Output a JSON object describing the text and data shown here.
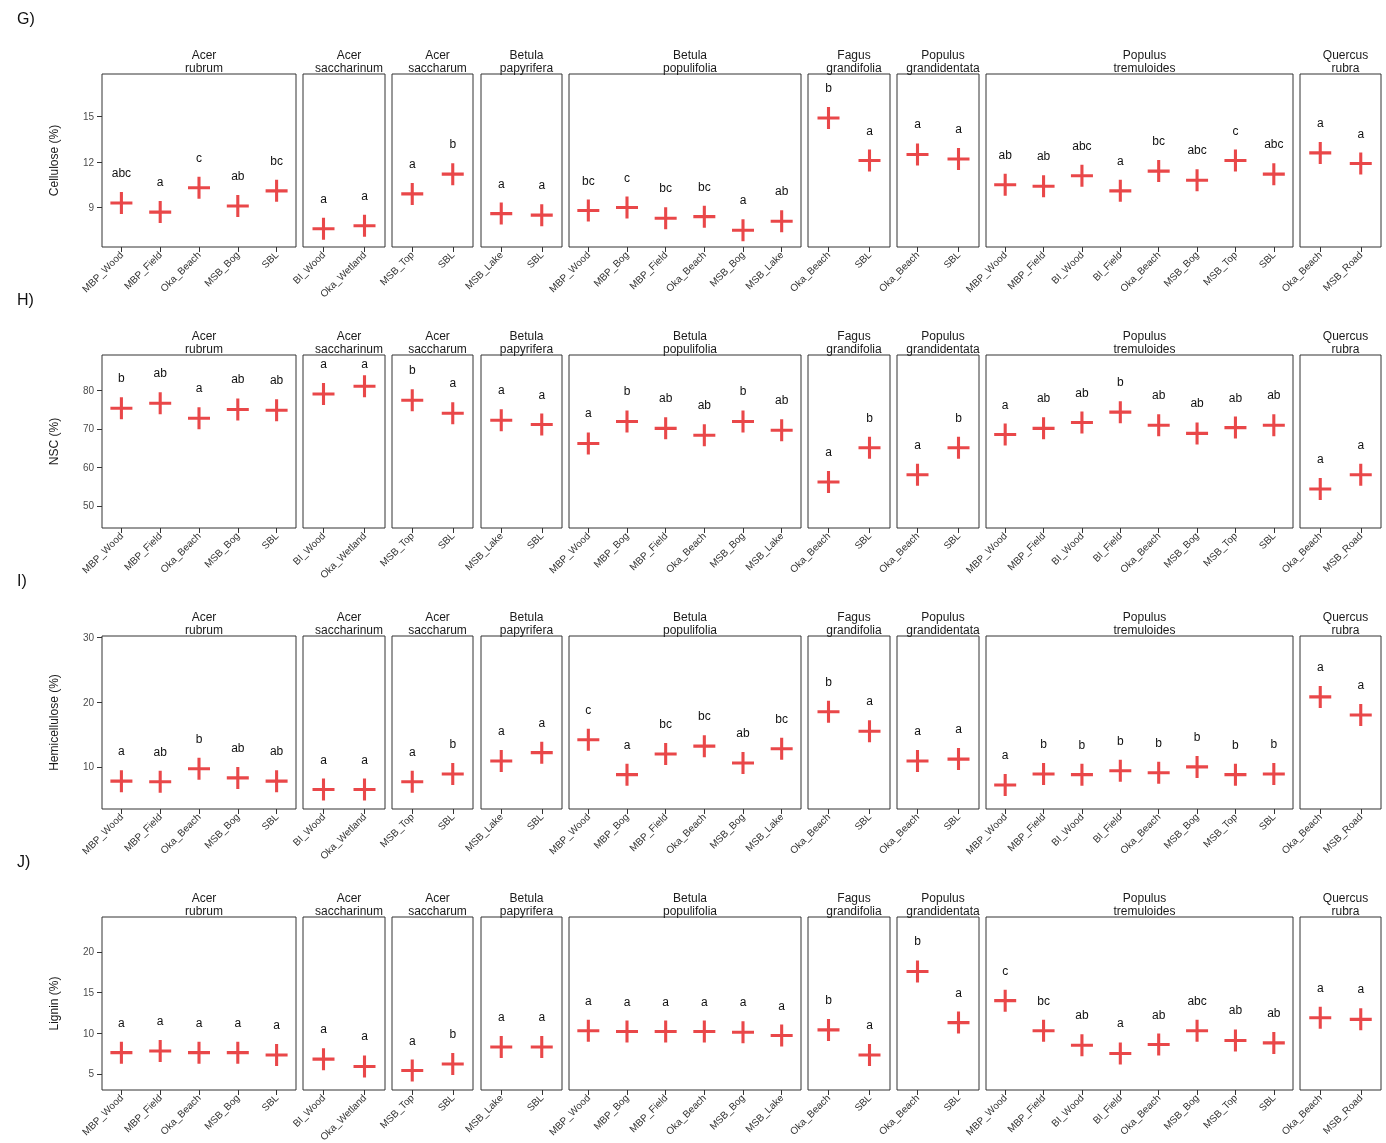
{
  "chart_data": [
    {
      "type": "scatter",
      "subtitle": "G)",
      "title": "Acer rubrum",
      "ylabel": "Cellulose (%)",
      "categories": [
        "MBP_Wood",
        "MBP_Field",
        "Oka_Beach",
        "MSB_Bog",
        "SBL"
      ],
      "values": [
        9.3,
        8.7,
        10.3,
        9.1,
        10.1
      ],
      "color": "#e3191c",
      "marker": "cross",
      "ylim": [
        6.4,
        17.8
      ],
      "yticks": [
        9,
        12,
        15
      ],
      "annotations": [
        "abc",
        "a",
        "c",
        "ab",
        "bc"
      ]
    },
    {
      "type": "scatter",
      "title": "Acer saccharinum",
      "categories": [
        "BI_Wood",
        "Oka_Wetland"
      ],
      "values": [
        7.6,
        7.8
      ],
      "color": "#e3191c",
      "marker": "cross",
      "ylim": [
        6.4,
        17.8
      ],
      "yticks": [
        9,
        12,
        15
      ],
      "tick_labels": "x",
      "annotations": [
        "a",
        "a"
      ]
    },
    {
      "type": "scatter",
      "title": "Acer saccharum",
      "categories": [
        "MSB_Top",
        "SBL"
      ],
      "values": [
        9.9,
        11.2
      ],
      "color": "#e3191c",
      "marker": "cross",
      "ylim": [
        6.4,
        17.8
      ],
      "yticks": [
        9,
        12,
        15
      ],
      "tick_labels": "x",
      "annotations": [
        "a",
        "b"
      ]
    },
    {
      "type": "scatter",
      "title": "Betula papyrifera",
      "categories": [
        "MSB_Lake",
        "SBL"
      ],
      "values": [
        8.6,
        8.5
      ],
      "color": "#e3191c",
      "marker": "cross",
      "ylim": [
        6.4,
        17.8
      ],
      "yticks": [
        9,
        12,
        15
      ],
      "tick_labels": "x",
      "annotations": [
        "a",
        "a"
      ]
    },
    {
      "type": "scatter",
      "title": "Betula populifolia",
      "categories": [
        "MBP_Wood",
        "MBP_Bog",
        "MBP_Field",
        "Oka_Beach",
        "MSB_Bog",
        "MSB_Lake"
      ],
      "values": [
        8.8,
        9.0,
        8.3,
        8.4,
        7.5,
        8.1
      ],
      "color": "#e3191c",
      "marker": "cross",
      "ylim": [
        6.4,
        17.8
      ],
      "yticks": [
        9,
        12,
        15
      ],
      "tick_labels": "x",
      "annotations": [
        "bc",
        "c",
        "bc",
        "bc",
        "a",
        "ab"
      ]
    },
    {
      "type": "scatter",
      "title": "Fagus grandifolia",
      "categories": [
        "Oka_Beach",
        "SBL"
      ],
      "values": [
        14.9,
        12.1
      ],
      "color": "#e3191c",
      "marker": "cross",
      "ylim": [
        6.4,
        17.8
      ],
      "yticks": [
        9,
        12,
        15
      ],
      "tick_labels": "x",
      "annotations": [
        "b",
        "a"
      ]
    },
    {
      "type": "scatter",
      "title": "Populus grandidentata",
      "categories": [
        "Oka_Beach",
        "SBL"
      ],
      "values": [
        12.5,
        12.2
      ],
      "color": "#e3191c",
      "marker": "cross",
      "ylim": [
        6.4,
        17.8
      ],
      "yticks": [
        9,
        12,
        15
      ],
      "tick_labels": "x",
      "annotations": [
        "a",
        "a"
      ]
    },
    {
      "type": "scatter",
      "title": "Populus tremuloides",
      "categories": [
        "MBP_Wood",
        "MBP_Field",
        "BI_Wood",
        "BI_Field",
        "Oka_Beach",
        "MSB_Bog",
        "MSB_Top",
        "SBL"
      ],
      "values": [
        10.5,
        10.4,
        11.1,
        10.1,
        11.4,
        10.8,
        12.1,
        11.2
      ],
      "color": "#e3191c",
      "marker": "cross",
      "ylim": [
        6.4,
        17.8
      ],
      "yticks": [
        9,
        12,
        15
      ],
      "tick_labels": "x",
      "annotations": [
        "ab",
        "ab",
        "abc",
        "a",
        "bc",
        "abc",
        "c",
        "abc"
      ]
    },
    {
      "type": "scatter",
      "title": "Quercus rubra",
      "categories": [
        "Oka_Beach",
        "MSB_Road"
      ],
      "values": [
        12.6,
        11.9
      ],
      "color": "#e3191c",
      "marker": "cross",
      "ylim": [
        6.4,
        17.8
      ],
      "yticks": [
        9,
        12,
        15
      ],
      "tick_labels": "x",
      "annotations": [
        "a",
        "a"
      ]
    },
    {
      "type": "scatter",
      "subtitle": "H)",
      "title": "Acer rubrum",
      "ylabel": "NSC (%)",
      "categories": [
        "MBP_Wood",
        "MBP_Field",
        "Oka_Beach",
        "MSB_Bog",
        "SBL"
      ],
      "values": [
        75.3,
        76.6,
        72.7,
        75.0,
        74.8
      ],
      "color": "#e3191c",
      "marker": "cross",
      "ylim": [
        44.3,
        89.1
      ],
      "yticks": [
        50,
        60,
        70,
        80
      ],
      "annotations": [
        "b",
        "ab",
        "a",
        "ab",
        "ab"
      ]
    },
    {
      "type": "scatter",
      "title": "Acer saccharinum",
      "categories": [
        "BI_Wood",
        "Oka_Wetland"
      ],
      "values": [
        79.0,
        81.0
      ],
      "color": "#e3191c",
      "marker": "cross",
      "ylim": [
        44.3,
        89.1
      ],
      "yticks": [
        50,
        60,
        70,
        80
      ],
      "tick_labels": "x",
      "annotations": [
        "a",
        "a"
      ]
    },
    {
      "type": "scatter",
      "title": "Acer saccharum",
      "categories": [
        "MSB_Top",
        "SBL"
      ],
      "values": [
        77.4,
        74.0
      ],
      "color": "#e3191c",
      "marker": "cross",
      "ylim": [
        44.3,
        89.1
      ],
      "yticks": [
        50,
        60,
        70,
        80
      ],
      "tick_labels": "x",
      "annotations": [
        "b",
        "a"
      ]
    },
    {
      "type": "scatter",
      "title": "Betula papyrifera",
      "categories": [
        "MSB_Lake",
        "SBL"
      ],
      "values": [
        72.2,
        71.1
      ],
      "color": "#e3191c",
      "marker": "cross",
      "ylim": [
        44.3,
        89.1
      ],
      "yticks": [
        50,
        60,
        70,
        80
      ],
      "tick_labels": "x",
      "annotations": [
        "a",
        "a"
      ]
    },
    {
      "type": "scatter",
      "title": "Betula populifolia",
      "categories": [
        "MBP_Wood",
        "MBP_Bog",
        "MBP_Field",
        "Oka_Beach",
        "MSB_Bog",
        "MSB_Lake"
      ],
      "values": [
        66.2,
        71.9,
        70.1,
        68.3,
        71.9,
        69.6
      ],
      "color": "#e3191c",
      "marker": "cross",
      "ylim": [
        44.3,
        89.1
      ],
      "yticks": [
        50,
        60,
        70,
        80
      ],
      "tick_labels": "x",
      "annotations": [
        "a",
        "b",
        "ab",
        "ab",
        "b",
        "ab"
      ]
    },
    {
      "type": "scatter",
      "title": "Fagus grandifolia",
      "categories": [
        "Oka_Beach",
        "SBL"
      ],
      "values": [
        56.2,
        65.1
      ],
      "color": "#e3191c",
      "marker": "cross",
      "ylim": [
        44.3,
        89.1
      ],
      "yticks": [
        50,
        60,
        70,
        80
      ],
      "tick_labels": "x",
      "annotations": [
        "a",
        "b"
      ]
    },
    {
      "type": "scatter",
      "title": "Populus grandidentata",
      "categories": [
        "Oka_Beach",
        "SBL"
      ],
      "values": [
        58.1,
        65.1
      ],
      "color": "#e3191c",
      "marker": "cross",
      "ylim": [
        44.3,
        89.1
      ],
      "yticks": [
        50,
        60,
        70,
        80
      ],
      "tick_labels": "x",
      "annotations": [
        "a",
        "b"
      ]
    },
    {
      "type": "scatter",
      "title": "Populus tremuloides",
      "categories": [
        "MBP_Wood",
        "MBP_Field",
        "BI_Wood",
        "BI_Field",
        "Oka_Beach",
        "MSB_Bog",
        "MSB_Top",
        "SBL"
      ],
      "values": [
        68.5,
        70.1,
        71.6,
        74.3,
        70.9,
        68.8,
        70.3,
        70.9
      ],
      "color": "#e3191c",
      "marker": "cross",
      "ylim": [
        44.3,
        89.1
      ],
      "yticks": [
        50,
        60,
        70,
        80
      ],
      "tick_labels": "x",
      "annotations": [
        "a",
        "ab",
        "ab",
        "b",
        "ab",
        "ab",
        "ab",
        "ab"
      ]
    },
    {
      "type": "scatter",
      "title": "Quercus rubra",
      "categories": [
        "Oka_Beach",
        "MSB_Road"
      ],
      "values": [
        54.4,
        58.1
      ],
      "color": "#e3191c",
      "marker": "cross",
      "ylim": [
        44.3,
        89.1
      ],
      "yticks": [
        50,
        60,
        70,
        80
      ],
      "tick_labels": "x",
      "annotations": [
        "a",
        "a"
      ]
    },
    {
      "type": "scatter",
      "subtitle": "I)",
      "title": "Acer rubrum",
      "ylabel": "Hemicellulose (%)",
      "categories": [
        "MBP_Wood",
        "MBP_Field",
        "Oka_Beach",
        "MSB_Bog",
        "SBL"
      ],
      "values": [
        7.8,
        7.7,
        9.7,
        8.3,
        7.8
      ],
      "color": "#e3191c",
      "marker": "cross",
      "ylim": [
        3.5,
        30.2
      ],
      "yticks": [
        10,
        20,
        30
      ],
      "annotations": [
        "a",
        "ab",
        "b",
        "ab",
        "ab"
      ]
    },
    {
      "type": "scatter",
      "title": "Acer saccharinum",
      "categories": [
        "BI_Wood",
        "Oka_Wetland"
      ],
      "values": [
        6.5,
        6.5
      ],
      "color": "#e3191c",
      "marker": "cross",
      "ylim": [
        3.5,
        30.2
      ],
      "yticks": [
        10,
        20,
        30
      ],
      "tick_labels": "x",
      "annotations": [
        "a",
        "a"
      ]
    },
    {
      "type": "scatter",
      "title": "Acer saccharum",
      "categories": [
        "MSB_Top",
        "SBL"
      ],
      "values": [
        7.7,
        8.9
      ],
      "color": "#e3191c",
      "marker": "cross",
      "ylim": [
        3.5,
        30.2
      ],
      "yticks": [
        10,
        20,
        30
      ],
      "tick_labels": "x",
      "annotations": [
        "a",
        "b"
      ]
    },
    {
      "type": "scatter",
      "title": "Betula papyrifera",
      "categories": [
        "MSB_Lake",
        "SBL"
      ],
      "values": [
        10.9,
        12.2
      ],
      "color": "#e3191c",
      "marker": "cross",
      "ylim": [
        3.5,
        30.2
      ],
      "yticks": [
        10,
        20,
        30
      ],
      "tick_labels": "x",
      "annotations": [
        "a",
        "a"
      ]
    },
    {
      "type": "scatter",
      "title": "Betula populifolia",
      "categories": [
        "MBP_Wood",
        "MBP_Bog",
        "MBP_Field",
        "Oka_Beach",
        "MSB_Bog",
        "MSB_Lake"
      ],
      "values": [
        14.2,
        8.8,
        12.0,
        13.2,
        10.6,
        12.8
      ],
      "color": "#e3191c",
      "marker": "cross",
      "ylim": [
        3.5,
        30.2
      ],
      "yticks": [
        10,
        20,
        30
      ],
      "tick_labels": "x",
      "annotations": [
        "c",
        "a",
        "bc",
        "bc",
        "ab",
        "bc"
      ]
    },
    {
      "type": "scatter",
      "title": "Fagus grandifolia",
      "categories": [
        "Oka_Beach",
        "SBL"
      ],
      "values": [
        18.5,
        15.5
      ],
      "color": "#e3191c",
      "marker": "cross",
      "ylim": [
        3.5,
        30.2
      ],
      "yticks": [
        10,
        20,
        30
      ],
      "tick_labels": "x",
      "annotations": [
        "b",
        "a"
      ]
    },
    {
      "type": "scatter",
      "title": "Populus grandidentata",
      "categories": [
        "Oka_Beach",
        "SBL"
      ],
      "values": [
        10.9,
        11.2
      ],
      "color": "#e3191c",
      "marker": "cross",
      "ylim": [
        3.5,
        30.2
      ],
      "yticks": [
        10,
        20,
        30
      ],
      "tick_labels": "x",
      "annotations": [
        "a",
        "a"
      ]
    },
    {
      "type": "scatter",
      "title": "Populus tremuloides",
      "categories": [
        "MBP_Wood",
        "MBP_Field",
        "BI_Wood",
        "BI_Field",
        "Oka_Beach",
        "MSB_Bog",
        "MSB_Top",
        "SBL"
      ],
      "values": [
        7.2,
        8.9,
        8.8,
        9.4,
        9.1,
        10.0,
        8.8,
        8.9
      ],
      "color": "#e3191c",
      "marker": "cross",
      "ylim": [
        3.5,
        30.2
      ],
      "yticks": [
        10,
        20,
        30
      ],
      "tick_labels": "x",
      "annotations": [
        "a",
        "b",
        "b",
        "b",
        "b",
        "b",
        "b",
        "b"
      ]
    },
    {
      "type": "scatter",
      "title": "Quercus rubra",
      "categories": [
        "Oka_Beach",
        "MSB_Road"
      ],
      "values": [
        20.8,
        18.0
      ],
      "color": "#e3191c",
      "marker": "cross",
      "ylim": [
        3.5,
        30.2
      ],
      "yticks": [
        10,
        20,
        30
      ],
      "tick_labels": "x",
      "annotations": [
        "a",
        "a"
      ]
    },
    {
      "type": "scatter",
      "subtitle": "J)",
      "title": "Acer rubrum",
      "ylabel": "Lignin (%)",
      "categories": [
        "MBP_Wood",
        "MBP_Field",
        "Oka_Beach",
        "MSB_Bog",
        "SBL"
      ],
      "values": [
        7.6,
        7.8,
        7.6,
        7.6,
        7.3
      ],
      "color": "#e3191c",
      "marker": "cross",
      "ylim": [
        3.0,
        24.3
      ],
      "yticks": [
        5,
        10,
        15,
        20
      ],
      "annotations": [
        "a",
        "a",
        "a",
        "a",
        "a"
      ]
    },
    {
      "type": "scatter",
      "title": "Acer saccharinum",
      "categories": [
        "BI_Wood",
        "Oka_Wetland"
      ],
      "values": [
        6.8,
        5.9
      ],
      "color": "#e3191c",
      "marker": "cross",
      "ylim": [
        3.0,
        24.3
      ],
      "yticks": [
        5,
        10,
        15,
        20
      ],
      "tick_labels": "x",
      "annotations": [
        "a",
        "a"
      ]
    },
    {
      "type": "scatter",
      "title": "Acer saccharum",
      "categories": [
        "MSB_Top",
        "SBL"
      ],
      "values": [
        5.4,
        6.2
      ],
      "color": "#e3191c",
      "marker": "cross",
      "ylim": [
        3.0,
        24.3
      ],
      "yticks": [
        5,
        10,
        15,
        20
      ],
      "tick_labels": "x",
      "annotations": [
        "a",
        "b"
      ]
    },
    {
      "type": "scatter",
      "title": "Betula papyrifera",
      "categories": [
        "MSB_Lake",
        "SBL"
      ],
      "values": [
        8.3,
        8.3
      ],
      "color": "#e3191c",
      "marker": "cross",
      "ylim": [
        3.0,
        24.3
      ],
      "yticks": [
        5,
        10,
        15,
        20
      ],
      "tick_labels": "x",
      "annotations": [
        "a",
        "a"
      ]
    },
    {
      "type": "scatter",
      "title": "Betula populifolia",
      "categories": [
        "MBP_Wood",
        "MBP_Bog",
        "MBP_Field",
        "Oka_Beach",
        "MSB_Bog",
        "MSB_Lake"
      ],
      "values": [
        10.3,
        10.2,
        10.2,
        10.2,
        10.1,
        9.7
      ],
      "color": "#e3191c",
      "marker": "cross",
      "ylim": [
        3.0,
        24.3
      ],
      "yticks": [
        5,
        10,
        15,
        20
      ],
      "tick_labels": "x",
      "annotations": [
        "a",
        "a",
        "a",
        "a",
        "a",
        "a"
      ]
    },
    {
      "type": "scatter",
      "title": "Fagus grandifolia",
      "categories": [
        "Oka_Beach",
        "SBL"
      ],
      "values": [
        10.4,
        7.3
      ],
      "color": "#e3191c",
      "marker": "cross",
      "ylim": [
        3.0,
        24.3
      ],
      "yticks": [
        5,
        10,
        15,
        20
      ],
      "tick_labels": "x",
      "annotations": [
        "b",
        "a"
      ]
    },
    {
      "type": "scatter",
      "title": "Populus grandidentata",
      "categories": [
        "Oka_Beach",
        "SBL"
      ],
      "values": [
        17.6,
        11.3
      ],
      "color": "#e3191c",
      "marker": "cross",
      "ylim": [
        3.0,
        24.3
      ],
      "yticks": [
        5,
        10,
        15,
        20
      ],
      "tick_labels": "x",
      "annotations": [
        "b",
        "a"
      ]
    },
    {
      "type": "scatter",
      "title": "Populus tremuloides",
      "categories": [
        "MBP_Wood",
        "MBP_Field",
        "BI_Wood",
        "BI_Field",
        "Oka_Beach",
        "MSB_Bog",
        "MSB_Top",
        "SBL"
      ],
      "values": [
        14.0,
        10.3,
        8.5,
        7.5,
        8.6,
        10.3,
        9.1,
        8.8
      ],
      "color": "#e3191c",
      "marker": "cross",
      "ylim": [
        3.0,
        24.3
      ],
      "yticks": [
        5,
        10,
        15,
        20
      ],
      "tick_labels": "x",
      "annotations": [
        "c",
        "bc",
        "ab",
        "a",
        "ab",
        "abc",
        "ab",
        "ab"
      ]
    },
    {
      "type": "scatter",
      "title": "Quercus rubra",
      "categories": [
        "Oka_Beach",
        "MSB_Road"
      ],
      "values": [
        11.9,
        11.7
      ],
      "color": "#e3191c",
      "marker": "cross",
      "ylim": [
        3.0,
        24.3
      ],
      "yticks": [
        5,
        10,
        15,
        20
      ],
      "tick_labels": "x",
      "annotations": [
        "a",
        "a"
      ]
    }
  ]
}
